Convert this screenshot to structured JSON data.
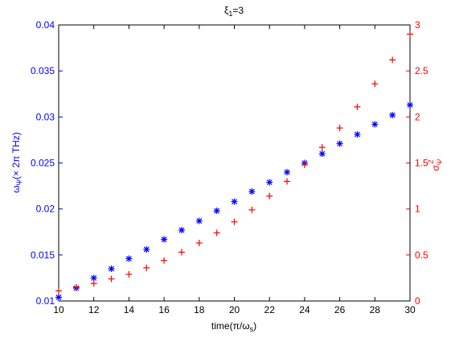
{
  "chart_data": {
    "type": "scatter",
    "title": "ξ",
    "title_sub": "1",
    "title_tail": "=3",
    "xlabel": "time(π/ω",
    "xlabel_sub": "s",
    "xlabel_tail": ")",
    "ylabel_left": "ω",
    "ylabel_left_sub": "Ψ",
    "ylabel_left_tail": "(× 2π THz)",
    "ylabel_right": "σ",
    "ylabel_right_sub": "Ψ",
    "ylabel_right_sup": "2",
    "xlim": [
      10,
      30
    ],
    "ylim_left": [
      0.01,
      0.04
    ],
    "ylim_right": [
      0,
      3
    ],
    "grid": false,
    "xticks": [
      "10",
      "12",
      "14",
      "16",
      "18",
      "20",
      "22",
      "24",
      "26",
      "28",
      "30"
    ],
    "yticks_left": [
      "0.01",
      "0.015",
      "0.02",
      "0.025",
      "0.03",
      "0.035",
      "0.04"
    ],
    "yticks_right": [
      "0",
      "0.5",
      "1",
      "1.5",
      "2",
      "2.5",
      "3"
    ],
    "colors": {
      "left": "#0000ff",
      "right": "#ff0000",
      "axis": "#000000"
    },
    "series": [
      {
        "axis": "left",
        "marker": "asterisk",
        "color": "#0000ff",
        "x": [
          10,
          11,
          12,
          13,
          14,
          15,
          16,
          17,
          18,
          19,
          20,
          21,
          22,
          23,
          24,
          25,
          26,
          27,
          28,
          29,
          30
        ],
        "y": [
          0.0104,
          0.0114,
          0.0125,
          0.0135,
          0.0146,
          0.0156,
          0.0167,
          0.0177,
          0.0187,
          0.0198,
          0.0208,
          0.0219,
          0.0229,
          0.024,
          0.025,
          0.026,
          0.0271,
          0.0281,
          0.0292,
          0.0302,
          0.0313
        ]
      },
      {
        "axis": "right",
        "marker": "plus",
        "color": "#ff0000",
        "x": [
          10,
          11,
          12,
          13,
          14,
          15,
          16,
          17,
          18,
          19,
          20,
          21,
          22,
          23,
          24,
          25,
          26,
          27,
          28,
          29,
          30
        ],
        "y": [
          0.11,
          0.15,
          0.19,
          0.24,
          0.29,
          0.36,
          0.44,
          0.53,
          0.63,
          0.74,
          0.86,
          0.99,
          1.14,
          1.3,
          1.48,
          1.67,
          1.88,
          2.11,
          2.36,
          2.62,
          2.9
        ]
      }
    ]
  }
}
